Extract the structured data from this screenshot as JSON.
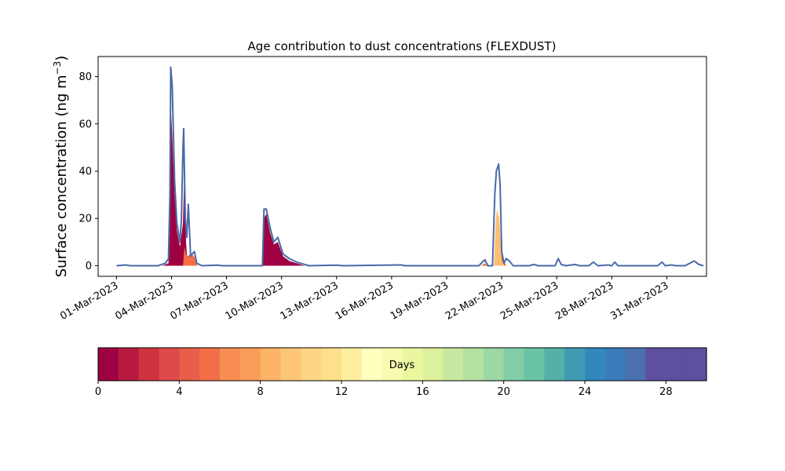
{
  "chart_data": {
    "type": "area",
    "title": "Age contribution to dust concentrations (FLEXDUST)",
    "ylabel_main": "Surface concentration (ng m",
    "ylabel_sup": "−3",
    "ylabel_close": ")",
    "xlabel": "",
    "x_range": [
      "2023-02-28T00:00",
      "2023-04-02T04:00"
    ],
    "y_range": [
      -4.5,
      88.5
    ],
    "y_ticks": [
      0,
      20,
      40,
      60,
      80
    ],
    "x_ticks": [
      "01-Mar-2023",
      "04-Mar-2023",
      "07-Mar-2023",
      "10-Mar-2023",
      "13-Mar-2023",
      "16-Mar-2023",
      "19-Mar-2023",
      "22-Mar-2023",
      "25-Mar-2023",
      "28-Mar-2023",
      "31-Mar-2023"
    ],
    "x_tick_dates": [
      "2023-03-01",
      "2023-03-04",
      "2023-03-07",
      "2023-03-10",
      "2023-03-13",
      "2023-03-16",
      "2023-03-19",
      "2023-03-22",
      "2023-03-25",
      "2023-03-28",
      "2023-03-31"
    ],
    "grid": false,
    "total_line_color": "#4a6aa8",
    "series": [
      {
        "age_days": "0-1",
        "color": "#9e0142",
        "points": [
          [
            "2023-03-01T00:00",
            0
          ],
          [
            "2023-03-03T12:00",
            0
          ],
          [
            "2023-03-03T20:00",
            1
          ],
          [
            "2023-03-03T22:00",
            15
          ],
          [
            "2023-03-03T23:00",
            68
          ],
          [
            "2023-03-04T01:00",
            55
          ],
          [
            "2023-03-04T04:00",
            30
          ],
          [
            "2023-03-04T07:00",
            15
          ],
          [
            "2023-03-04T11:00",
            8
          ],
          [
            "2023-03-04T15:00",
            18
          ],
          [
            "2023-03-04T17:00",
            42
          ],
          [
            "2023-03-04T19:00",
            10
          ],
          [
            "2023-03-04T21:00",
            1
          ],
          [
            "2023-03-05T02:00",
            0
          ],
          [
            "2023-03-08T23:00",
            0
          ],
          [
            "2023-03-09T01:00",
            20
          ],
          [
            "2023-03-09T04:00",
            22
          ],
          [
            "2023-03-09T09:00",
            14
          ],
          [
            "2023-03-09T14:00",
            9
          ],
          [
            "2023-03-09T19:00",
            10
          ],
          [
            "2023-03-10T02:00",
            4
          ],
          [
            "2023-03-10T10:00",
            2
          ],
          [
            "2023-03-10T20:00",
            1
          ],
          [
            "2023-03-11T06:00",
            0
          ],
          [
            "2023-04-01T00:00",
            0
          ]
        ]
      },
      {
        "age_days": "1-8",
        "color": "#f46d43",
        "points": [
          [
            "2023-03-01T00:00",
            0
          ],
          [
            "2023-03-04T15:00",
            0
          ],
          [
            "2023-03-04T17:00",
            8
          ],
          [
            "2023-03-04T20:00",
            4
          ],
          [
            "2023-03-05T03:00",
            5
          ],
          [
            "2023-03-05T07:00",
            3
          ],
          [
            "2023-03-05T10:00",
            0
          ],
          [
            "2023-03-20T21:00",
            0
          ],
          [
            "2023-03-21T02:00",
            1
          ],
          [
            "2023-03-21T05:00",
            0
          ],
          [
            "2023-03-21T14:00",
            0
          ],
          [
            "2023-03-21T16:00",
            8
          ],
          [
            "2023-03-21T18:00",
            14
          ],
          [
            "2023-03-21T21:00",
            10
          ],
          [
            "2023-03-22T02:00",
            3
          ],
          [
            "2023-03-22T06:00",
            0
          ],
          [
            "2023-04-01T00:00",
            0
          ]
        ]
      },
      {
        "age_days": "8-14",
        "color": "#fdbf6f",
        "points": [
          [
            "2023-03-01T00:00",
            0
          ],
          [
            "2023-03-21T14:00",
            0
          ],
          [
            "2023-03-21T16:00",
            18
          ],
          [
            "2023-03-21T18:00",
            24
          ],
          [
            "2023-03-21T21:00",
            20
          ],
          [
            "2023-03-22T00:00",
            2
          ],
          [
            "2023-03-22T04:00",
            0
          ],
          [
            "2023-04-01T00:00",
            0
          ]
        ]
      }
    ],
    "total": [
      [
        "2023-03-01T00:00",
        0
      ],
      [
        "2023-03-01T12:00",
        0.3
      ],
      [
        "2023-03-01T18:00",
        0
      ],
      [
        "2023-03-03T06:00",
        0
      ],
      [
        "2023-03-03T16:00",
        1
      ],
      [
        "2023-03-03T20:00",
        3
      ],
      [
        "2023-03-03T22:00",
        30
      ],
      [
        "2023-03-03T23:00",
        84
      ],
      [
        "2023-03-04T01:00",
        76
      ],
      [
        "2023-03-04T04:00",
        36
      ],
      [
        "2023-03-04T07:00",
        18
      ],
      [
        "2023-03-04T11:00",
        10
      ],
      [
        "2023-03-04T13:00",
        20
      ],
      [
        "2023-03-04T15:00",
        50
      ],
      [
        "2023-03-04T16:00",
        58
      ],
      [
        "2023-03-04T18:00",
        20
      ],
      [
        "2023-03-04T20:00",
        12
      ],
      [
        "2023-03-04T22:00",
        26
      ],
      [
        "2023-03-05T01:00",
        4
      ],
      [
        "2023-03-05T03:00",
        5
      ],
      [
        "2023-03-05T06:00",
        6
      ],
      [
        "2023-03-05T09:00",
        1
      ],
      [
        "2023-03-05T16:00",
        0
      ],
      [
        "2023-03-06T12:00",
        0.2
      ],
      [
        "2023-03-06T18:00",
        0
      ],
      [
        "2023-03-08T23:00",
        0
      ],
      [
        "2023-03-09T01:00",
        24
      ],
      [
        "2023-03-09T04:00",
        24
      ],
      [
        "2023-03-09T09:00",
        16
      ],
      [
        "2023-03-09T14:00",
        10
      ],
      [
        "2023-03-09T19:00",
        12
      ],
      [
        "2023-03-10T02:00",
        5
      ],
      [
        "2023-03-10T10:00",
        3
      ],
      [
        "2023-03-10T20:00",
        1.5
      ],
      [
        "2023-03-11T06:00",
        0.5
      ],
      [
        "2023-03-11T12:00",
        0
      ],
      [
        "2023-03-13T00:00",
        0.2
      ],
      [
        "2023-03-13T08:00",
        0
      ],
      [
        "2023-03-16T12:00",
        0.3
      ],
      [
        "2023-03-16T18:00",
        0
      ],
      [
        "2023-03-20T18:00",
        0
      ],
      [
        "2023-03-21T02:00",
        2.5
      ],
      [
        "2023-03-21T06:00",
        0
      ],
      [
        "2023-03-21T12:00",
        0
      ],
      [
        "2023-03-21T15:00",
        30
      ],
      [
        "2023-03-21T17:00",
        40
      ],
      [
        "2023-03-21T20:00",
        43
      ],
      [
        "2023-03-21T22:00",
        34
      ],
      [
        "2023-03-22T00:00",
        6
      ],
      [
        "2023-03-22T03:00",
        1
      ],
      [
        "2023-03-22T06:00",
        3
      ],
      [
        "2023-03-22T10:00",
        2
      ],
      [
        "2023-03-22T15:00",
        0
      ],
      [
        "2023-03-23T12:00",
        0
      ],
      [
        "2023-03-23T18:00",
        0.5
      ],
      [
        "2023-03-24T00:00",
        0
      ],
      [
        "2023-03-24T22:00",
        0
      ],
      [
        "2023-03-25T02:00",
        3
      ],
      [
        "2023-03-25T06:00",
        0.5
      ],
      [
        "2023-03-25T12:00",
        0
      ],
      [
        "2023-03-26T00:00",
        0.5
      ],
      [
        "2023-03-26T06:00",
        0
      ],
      [
        "2023-03-26T18:00",
        0
      ],
      [
        "2023-03-27T00:00",
        1.5
      ],
      [
        "2023-03-27T06:00",
        0
      ],
      [
        "2023-03-27T20:00",
        0.3
      ],
      [
        "2023-03-27T23:00",
        0
      ],
      [
        "2023-03-28T00:00",
        0
      ],
      [
        "2023-03-28T04:00",
        1.5
      ],
      [
        "2023-03-28T08:00",
        0
      ],
      [
        "2023-03-30T12:00",
        0
      ],
      [
        "2023-03-30T18:00",
        1.5
      ],
      [
        "2023-03-30T22:00",
        0
      ],
      [
        "2023-03-31T06:00",
        0.3
      ],
      [
        "2023-03-31T12:00",
        0
      ],
      [
        "2023-04-01T00:00",
        0
      ],
      [
        "2023-04-01T12:00",
        2
      ],
      [
        "2023-04-01T18:00",
        0.5
      ],
      [
        "2023-04-02T00:00",
        0
      ]
    ],
    "colorbar": {
      "label": "Days",
      "range": [
        0,
        30
      ],
      "ticks": [
        0,
        4,
        8,
        12,
        16,
        20,
        24,
        28
      ],
      "colors": [
        "#9e0142",
        "#b7193f",
        "#cf333d",
        "#de4a4c",
        "#e85e4a",
        "#f36f4a",
        "#f88d52",
        "#fa9d58",
        "#fdb366",
        "#fec577",
        "#fed585",
        "#fee08b",
        "#feefa1",
        "#ffffbf",
        "#f7fbaf",
        "#eaf79f",
        "#dcf09e",
        "#c7e8a0",
        "#b4e1a0",
        "#9bd8a4",
        "#82cda5",
        "#6ac3a5",
        "#55b0a9",
        "#3f9bb4",
        "#3288bd",
        "#3a7bb9",
        "#4b6fb1",
        "#5e4fa2",
        "#5e4fa2",
        "#5e4fa2"
      ]
    }
  }
}
